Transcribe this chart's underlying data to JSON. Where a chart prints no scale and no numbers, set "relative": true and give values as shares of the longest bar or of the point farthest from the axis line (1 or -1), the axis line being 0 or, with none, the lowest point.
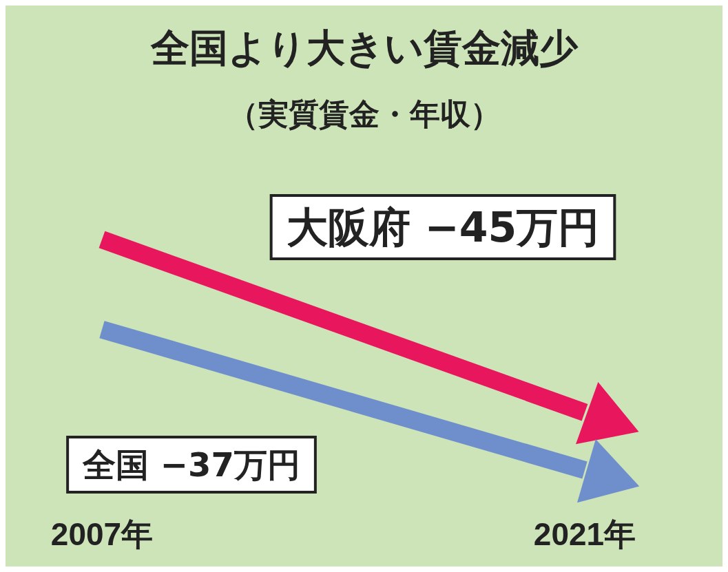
{
  "chart_data": {
    "type": "line",
    "title": "全国より大きい賃金減少",
    "subtitle": "（実質賃金・年収）",
    "categories": [
      "2007年",
      "2021年"
    ],
    "relative": true,
    "legend": false,
    "marker": "none",
    "series": [
      {
        "name": "大阪府 −45万円",
        "color": "#e8175d",
        "values": [
          1,
          0.25
        ]
      },
      {
        "name": "全国 −37万円",
        "color": "#6f8fcc",
        "values": [
          0.61,
          0
        ]
      }
    ]
  }
}
